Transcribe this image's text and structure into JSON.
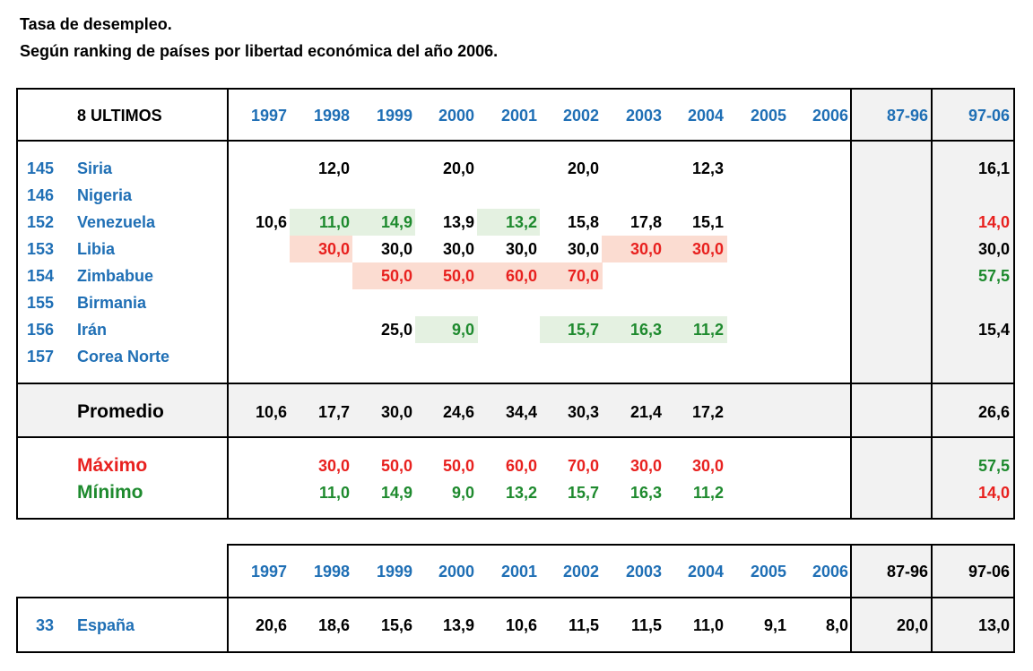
{
  "title1": "Tasa de desempleo.",
  "title2": "Según ranking de países por libertad económica del año 2006.",
  "table1": {
    "header_label": "8 ULTIMOS",
    "years": [
      "1997",
      "1998",
      "1999",
      "2000",
      "2001",
      "2002",
      "2003",
      "2004",
      "2005",
      "2006"
    ],
    "period1": "87-96",
    "period2": "97-06",
    "countries": [
      {
        "rank": "145",
        "name": "Siria",
        "values": [
          "",
          "12,0",
          "",
          "20,0",
          "",
          "20,0",
          "",
          "12,3",
          "",
          ""
        ],
        "p1": "",
        "p2": "16,1"
      },
      {
        "rank": "146",
        "name": "Nigeria",
        "values": [
          "",
          "",
          "",
          "",
          "",
          "",
          "",
          "",
          "",
          ""
        ],
        "p1": "",
        "p2": ""
      },
      {
        "rank": "152",
        "name": "Venezuela",
        "values": [
          "10,6",
          "11,0",
          "14,9",
          "13,9",
          "13,2",
          "15,8",
          "17,8",
          "15,1",
          "",
          ""
        ],
        "p1": "",
        "p2": "14,0"
      },
      {
        "rank": "153",
        "name": "Libia",
        "values": [
          "",
          "30,0",
          "30,0",
          "30,0",
          "30,0",
          "30,0",
          "30,0",
          "30,0",
          "",
          ""
        ],
        "p1": "",
        "p2": "30,0"
      },
      {
        "rank": "154",
        "name": "Zimbabue",
        "values": [
          "",
          "",
          "50,0",
          "50,0",
          "60,0",
          "70,0",
          "",
          "",
          "",
          ""
        ],
        "p1": "",
        "p2": "57,5"
      },
      {
        "rank": "155",
        "name": "Birmania",
        "values": [
          "",
          "",
          "",
          "",
          "",
          "",
          "",
          "",
          "",
          ""
        ],
        "p1": "",
        "p2": ""
      },
      {
        "rank": "156",
        "name": "Irán",
        "values": [
          "",
          "",
          "25,0",
          "9,0",
          "",
          "15,7",
          "16,3",
          "11,2",
          "",
          ""
        ],
        "p1": "",
        "p2": "15,4"
      },
      {
        "rank": "157",
        "name": "Corea Norte",
        "values": [
          "",
          "",
          "",
          "",
          "",
          "",
          "",
          "",
          "",
          ""
        ],
        "p1": "",
        "p2": ""
      }
    ],
    "average": {
      "label": "Promedio",
      "values": [
        "10,6",
        "17,7",
        "30,0",
        "24,6",
        "34,4",
        "30,3",
        "21,4",
        "17,2",
        "",
        ""
      ],
      "p2": "26,6"
    },
    "maximum": {
      "label": "Máximo",
      "values": [
        "",
        "30,0",
        "50,0",
        "50,0",
        "60,0",
        "70,0",
        "30,0",
        "30,0",
        "",
        ""
      ],
      "p2": "57,5"
    },
    "minimum": {
      "label": "Mínimo",
      "values": [
        "",
        "11,0",
        "14,9",
        "9,0",
        "13,2",
        "15,7",
        "16,3",
        "11,2",
        "",
        ""
      ],
      "p2": "14,0"
    }
  },
  "table2": {
    "years": [
      "1997",
      "1998",
      "1999",
      "2000",
      "2001",
      "2002",
      "2003",
      "2004",
      "2005",
      "2006"
    ],
    "period1": "87-96",
    "period2": "97-06",
    "row": {
      "rank": "33",
      "name": "España",
      "values": [
        "20,6",
        "18,6",
        "15,6",
        "13,9",
        "10,6",
        "11,5",
        "11,5",
        "11,0",
        "9,1",
        "8,0"
      ],
      "p1": "20,0",
      "p2": "13,0"
    }
  },
  "colors": {
    "blue": "#1f6fb5",
    "red": "#e8211f",
    "green": "#1e8a2e",
    "green_bg": "#e4f1e1",
    "red_bg": "#fbdcd1",
    "shade": "#f2f2f2"
  }
}
